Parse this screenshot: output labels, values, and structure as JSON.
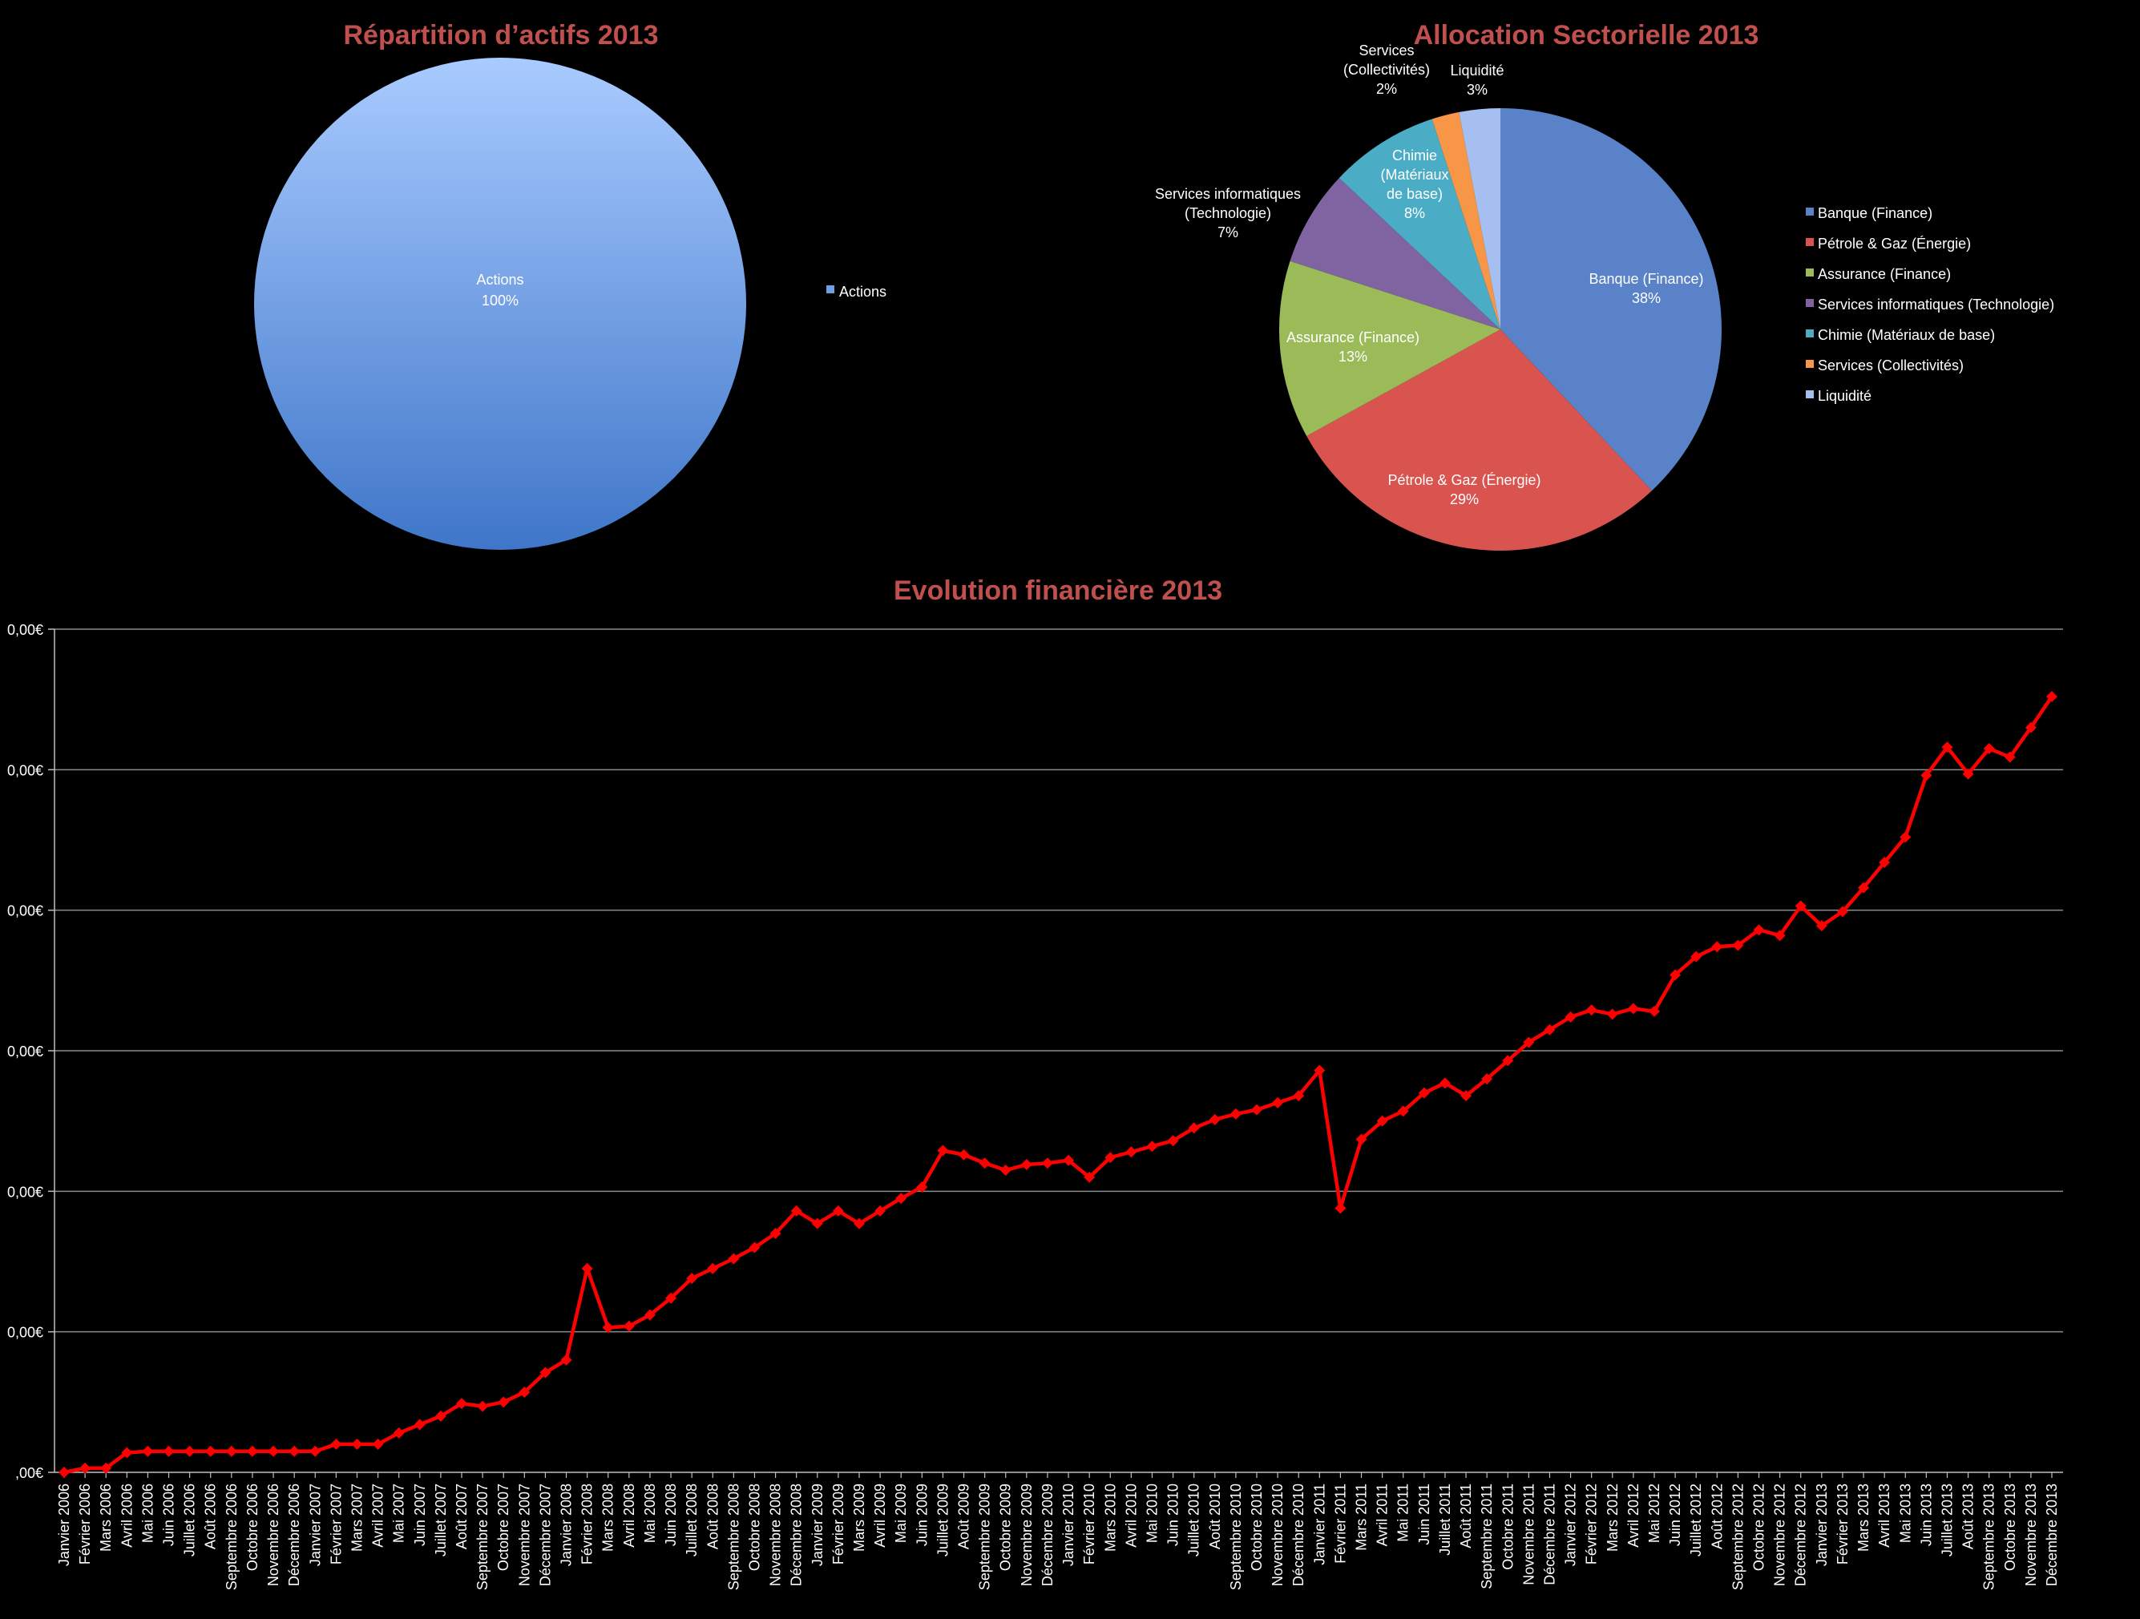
{
  "chart_data": [
    {
      "type": "pie",
      "title": "Répartition d’actifs 2013",
      "slices": [
        {
          "name": "Actions",
          "value": 100,
          "label": "100%",
          "color": "#6fa0e6"
        }
      ],
      "legend": {
        "position": "right",
        "entries": [
          "Actions"
        ]
      }
    },
    {
      "type": "pie",
      "title": "Allocation Sectorielle 2013",
      "slices": [
        {
          "name": "Banque (Finance)",
          "value": 38,
          "label": "38%",
          "color": "#5a82c8",
          "label_lines": [
            "Banque (Finance)",
            "38%"
          ]
        },
        {
          "name": "Pétrole & Gaz (Énergie)",
          "value": 29,
          "label": "29%",
          "color": "#d9534f",
          "label_lines": [
            "Pétrole & Gaz (Énergie)",
            "29%"
          ]
        },
        {
          "name": "Assurance (Finance)",
          "value": 13,
          "label": "13%",
          "color": "#9bbb59",
          "label_lines": [
            "Assurance (Finance)",
            "13%"
          ]
        },
        {
          "name": "Services informatiques (Technologie)",
          "value": 7,
          "label": "7%",
          "color": "#8064a2",
          "label_lines": [
            "Services informatiques",
            "(Technologie)",
            "7%"
          ]
        },
        {
          "name": "Chimie (Matériaux de base)",
          "value": 8,
          "label": "8%",
          "color": "#4bacc6",
          "label_lines": [
            "Chimie",
            "(Matériaux",
            "de base)",
            "8%"
          ]
        },
        {
          "name": "Services (Collectivités)",
          "value": 2,
          "label": "2%",
          "color": "#f79646",
          "label_lines": [
            "Services",
            "(Collectivités)",
            "2%"
          ]
        },
        {
          "name": "Liquidité",
          "value": 3,
          "label": "3%",
          "color": "#a5bff0",
          "label_lines": [
            "Liquidité",
            "3%"
          ]
        }
      ],
      "legend": {
        "position": "right",
        "entries": [
          "Banque (Finance)",
          "Pétrole & Gaz (Énergie)",
          "Assurance (Finance)",
          "Services informatiques (Technologie)",
          "Chimie (Matériaux de base)",
          "Services (Collectivités)",
          "Liquidité"
        ]
      }
    },
    {
      "type": "line",
      "title": "Evolution financière 2013",
      "ylim": [
        0,
        6
      ],
      "grid": true,
      "y_tick_labels": [
        ",00€",
        "0,00€",
        "0,00€",
        "0,00€",
        "0,00€",
        "0,00€",
        "0,00€"
      ],
      "x": [
        "Janvier 2006",
        "Février 2006",
        "Mars 2006",
        "Avril 2006",
        "Mai 2006",
        "Juin 2006",
        "Juillet 2006",
        "Août 2006",
        "Septembre 2006",
        "Octobre 2006",
        "Novembre 2006",
        "Décembre 2006",
        "Janvier 2007",
        "Février 2007",
        "Mars 2007",
        "Avril 2007",
        "Mai 2007",
        "Juin 2007",
        "Juillet 2007",
        "Août 2007",
        "Septembre 2007",
        "Octobre 2007",
        "Novembre 2007",
        "Décembre 2007",
        "Janvier 2008",
        "Février 2008",
        "Mars 2008",
        "Avril 2008",
        "Mai 2008",
        "Juin 2008",
        "Juillet 2008",
        "Août 2008",
        "Septembre 2008",
        "Octobre 2008",
        "Novembre 2008",
        "Décembre 2008",
        "Janvier 2009",
        "Février 2009",
        "Mars 2009",
        "Avril 2009",
        "Mai 2009",
        "Juin 2009",
        "Juillet 2009",
        "Août 2009",
        "Septembre 2009",
        "Octobre 2009",
        "Novembre 2009",
        "Décembre 2009",
        "Janvier 2010",
        "Février 2010",
        "Mars 2010",
        "Avril 2010",
        "Mai 2010",
        "Juin 2010",
        "Juillet 2010",
        "Août 2010",
        "Septembre 2010",
        "Octobre 2010",
        "Novembre 2010",
        "Décembre 2010",
        "Janvier 2011",
        "Février 2011",
        "Mars 2011",
        "Avril 2011",
        "Mai 2011",
        "Juin 2011",
        "Juillet 2011",
        "Août 2011",
        "Septembre 2011",
        "Octobre 2011",
        "Novembre 2011",
        "Décembre 2011",
        "Janvier 2012",
        "Février 2012",
        "Mars 2012",
        "Avril 2012",
        "Mai 2012",
        "Juin 2012",
        "Juillet 2012",
        "Août 2012",
        "Septembre 2012",
        "Octobre 2012",
        "Novembre 2012",
        "Décembre 2012",
        "Janvier 2013",
        "Février 2013",
        "Mars 2013",
        "Avril 2013",
        "Mai 2013",
        "Juin 2013",
        "Juillet 2013",
        "Août 2013",
        "Septembre 2013",
        "Octobre 2013",
        "Novembre 2013",
        "Décembre 2013"
      ],
      "series": [
        {
          "color": "#ff0000",
          "values": [
            0.0,
            0.03,
            0.03,
            0.14,
            0.15,
            0.15,
            0.15,
            0.15,
            0.15,
            0.15,
            0.15,
            0.15,
            0.15,
            0.2,
            0.2,
            0.2,
            0.28,
            0.34,
            0.4,
            0.49,
            0.47,
            0.5,
            0.57,
            0.71,
            0.8,
            1.45,
            1.03,
            1.04,
            1.12,
            1.24,
            1.38,
            1.45,
            1.52,
            1.6,
            1.7,
            1.86,
            1.77,
            1.86,
            1.77,
            1.86,
            1.95,
            2.03,
            2.29,
            2.26,
            2.2,
            2.15,
            2.19,
            2.2,
            2.22,
            2.1,
            2.24,
            2.28,
            2.32,
            2.36,
            2.45,
            2.51,
            2.55,
            2.58,
            2.63,
            2.68,
            2.86,
            1.88,
            2.37,
            2.5,
            2.57,
            2.7,
            2.77,
            2.68,
            2.8,
            2.93,
            3.06,
            3.15,
            3.24,
            3.29,
            3.26,
            3.3,
            3.28,
            3.54,
            3.67,
            3.74,
            3.75,
            3.86,
            3.82,
            4.03,
            3.89,
            3.99,
            4.16,
            4.34,
            4.52,
            4.96,
            5.16,
            4.97,
            5.15,
            5.09,
            5.3,
            5.52
          ]
        }
      ]
    }
  ]
}
